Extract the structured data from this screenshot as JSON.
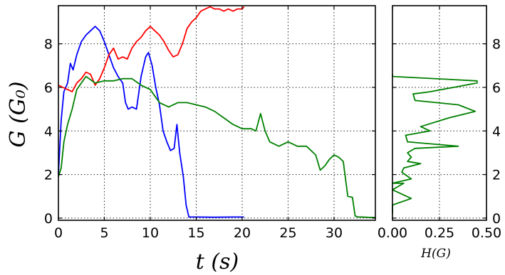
{
  "chart_data": [
    {
      "id": "main",
      "type": "line",
      "xlabel": "t (s)",
      "ylabel": "G (G₀)",
      "xlim": [
        0,
        34.5
      ],
      "ylim": [
        -0.1,
        9.75
      ],
      "xticks": [
        0,
        5,
        10,
        15,
        20,
        25,
        30
      ],
      "yticks": [
        0,
        2,
        4,
        6,
        8
      ],
      "grid": true,
      "series": [
        {
          "color": "#0000ff",
          "x": [
            0,
            0.3,
            0.6,
            1.0,
            1.3,
            1.6,
            2.0,
            2.5,
            3.0,
            3.5,
            4.0,
            4.5,
            5.0,
            5.5,
            6.0,
            6.5,
            7.0,
            7.3,
            7.6,
            8.0,
            8.5,
            9.0,
            9.5,
            9.8,
            10.2,
            10.6,
            11.0,
            11.4,
            11.8,
            12.2,
            12.6,
            12.9,
            13.2,
            13.6,
            13.9,
            14.2,
            15,
            17,
            19,
            20.2
          ],
          "values": [
            2.0,
            4.5,
            5.8,
            6.2,
            7.1,
            6.8,
            7.5,
            8.1,
            8.4,
            8.6,
            8.8,
            8.6,
            8.1,
            7.5,
            6.9,
            6.5,
            6.2,
            5.3,
            5.0,
            5.1,
            5.0,
            6.5,
            7.4,
            7.6,
            7.0,
            6.0,
            5.2,
            4.0,
            3.5,
            3.1,
            3.2,
            4.3,
            3.0,
            1.9,
            0.6,
            0.05,
            0.05,
            0.04,
            0.05,
            0.05
          ]
        },
        {
          "color": "#ff0000",
          "x": [
            0,
            0.5,
            1.0,
            1.5,
            2.0,
            2.5,
            3.0,
            3.5,
            4.0,
            4.5,
            5.0,
            5.5,
            6.0,
            6.5,
            7.0,
            7.5,
            8.0,
            8.5,
            9.0,
            9.5,
            10.0,
            10.5,
            11.0,
            11.5,
            12.0,
            12.5,
            13.0,
            13.5,
            14.0,
            14.5,
            15.0,
            15.5,
            16.0,
            16.5,
            17.0,
            17.5,
            18.0,
            18.5,
            19.0,
            19.5,
            20.0,
            20.2
          ],
          "values": [
            6.1,
            6.0,
            5.9,
            5.8,
            6.2,
            6.4,
            6.7,
            6.6,
            6.1,
            6.4,
            6.9,
            7.5,
            7.8,
            7.3,
            7.4,
            7.3,
            7.8,
            8.1,
            8.3,
            8.6,
            8.8,
            8.6,
            8.4,
            8.1,
            7.7,
            7.4,
            7.5,
            8.0,
            8.7,
            9.0,
            9.2,
            9.5,
            9.6,
            9.7,
            9.6,
            9.6,
            9.5,
            9.6,
            9.5,
            9.6,
            9.6,
            9.7
          ]
        },
        {
          "color": "#008000",
          "x": [
            0,
            0.3,
            0.6,
            1.0,
            1.5,
            2.0,
            2.5,
            3.0,
            4.0,
            5.0,
            6.0,
            7.0,
            8.0,
            9.0,
            10.0,
            10.5,
            11.0,
            12.0,
            13.0,
            14.0,
            15.0,
            16.0,
            17.0,
            18.0,
            19.0,
            20.0,
            21.0,
            21.5,
            22.0,
            22.5,
            23.0,
            23.5,
            24.0,
            25.0,
            26.0,
            27.0,
            28.0,
            28.5,
            29.0,
            29.5,
            30.0,
            30.5,
            31.0,
            31.5,
            32.0,
            32.3,
            32.6,
            33.0,
            34.0,
            34.5
          ],
          "values": [
            1.9,
            2.3,
            3.5,
            4.3,
            5.0,
            5.9,
            6.2,
            6.5,
            6.2,
            6.3,
            6.3,
            6.4,
            6.4,
            6.1,
            5.9,
            5.6,
            5.3,
            5.1,
            5.3,
            5.3,
            5.2,
            5.1,
            4.9,
            4.6,
            4.3,
            4.1,
            4.1,
            4.0,
            4.8,
            4.0,
            3.5,
            3.4,
            3.3,
            3.5,
            3.3,
            3.3,
            2.9,
            2.2,
            2.4,
            2.7,
            2.9,
            2.8,
            2.6,
            1.0,
            0.95,
            0.1,
            0.05,
            0.05,
            0.03,
            0.03
          ]
        }
      ]
    },
    {
      "id": "histogram",
      "type": "line",
      "xlabel": "H(G)",
      "xlim": [
        0,
        0.5
      ],
      "ylim": [
        -0.1,
        9.75
      ],
      "xticks": [
        0.0,
        0.25,
        0.5
      ],
      "xtick_labels": [
        "0.00",
        "0.25",
        "0.50"
      ],
      "yticks": [
        0,
        2,
        4,
        6,
        8
      ],
      "ytick_side": "right",
      "grid": true,
      "series": [
        {
          "color": "#008000",
          "x": [
            0.0,
            0.0,
            0.1,
            0.0,
            0.06,
            0.0,
            0.1,
            0.05,
            0.06,
            0.15,
            0.08,
            0.1,
            0.08,
            0.1,
            0.12,
            0.35,
            0.08,
            0.07,
            0.2,
            0.15,
            0.3,
            0.44,
            0.35,
            0.12,
            0.11,
            0.2,
            0.45,
            0.45,
            0.0,
            0.0
          ],
          "values": [
            0.2,
            0.6,
            0.9,
            1.3,
            1.6,
            1.6,
            1.8,
            2.1,
            2.3,
            2.5,
            2.6,
            2.8,
            3.0,
            3.1,
            3.2,
            3.3,
            3.5,
            3.8,
            4.0,
            4.2,
            4.6,
            4.9,
            5.2,
            5.4,
            5.7,
            5.8,
            6.2,
            6.3,
            6.5,
            6.6
          ]
        }
      ]
    }
  ]
}
